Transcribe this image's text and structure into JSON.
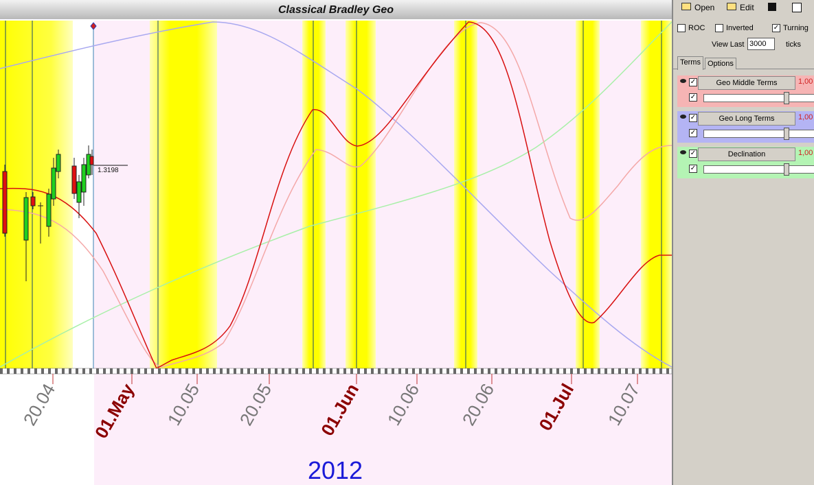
{
  "title": "Classical Bradley Geo",
  "chart": {
    "price_label": "1.3198",
    "x_labels": [
      {
        "text": "20.04",
        "color": "#777777"
      },
      {
        "text": "01.May",
        "color": "#8b0000"
      },
      {
        "text": "10.05",
        "color": "#777777"
      },
      {
        "text": "20.05",
        "color": "#777777"
      },
      {
        "text": "01.Jun",
        "color": "#8b0000"
      },
      {
        "text": "10.06",
        "color": "#777777"
      },
      {
        "text": "20.06",
        "color": "#777777"
      },
      {
        "text": "01.Jul",
        "color": "#8b0000"
      },
      {
        "text": "10.07",
        "color": "#777777"
      }
    ],
    "year": "2012"
  },
  "toolbar": {
    "buttons": [
      "Open",
      "Edit"
    ]
  },
  "options": {
    "checkboxes": [
      {
        "label": "ROC",
        "checked": false
      },
      {
        "label": "Inverted",
        "checked": false
      },
      {
        "label": "Turning",
        "checked": true
      }
    ],
    "view_last_label": "View Last",
    "view_last_value": "3000",
    "ticks_label": "ticks"
  },
  "tabs": [
    "Terms",
    "Options"
  ],
  "terms": [
    {
      "name": "Geo Middle Terms",
      "weight": "1,00",
      "color": "#f6b4b4"
    },
    {
      "name": "Geo Long Terms",
      "weight": "1,00",
      "color": "#b4b4f4"
    },
    {
      "name": "Declination",
      "weight": "1,00",
      "color": "#b4f4b4"
    }
  ]
}
